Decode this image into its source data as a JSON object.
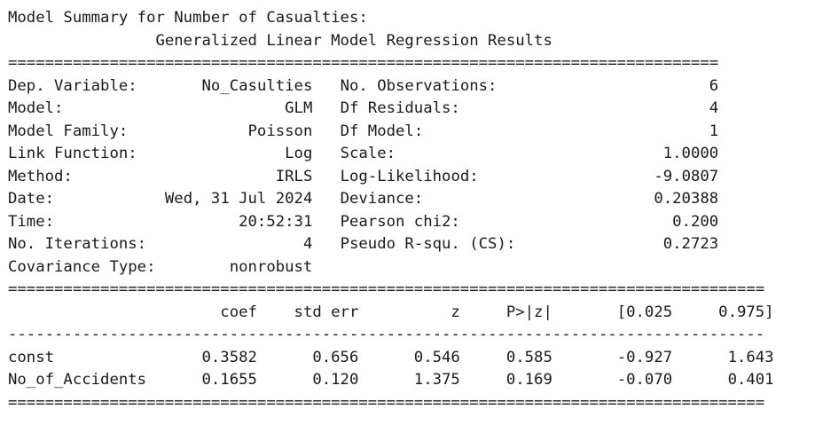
{
  "heading": "Model Summary for Number of Casualties:",
  "title": "Generalized Linear Model Regression Results",
  "rule_short": "=============================================================================",
  "rule_long": "==================================================================================",
  "rule_dash": "----------------------------------------------------------------------------------",
  "model_info": [
    {
      "left_label": "Dep. Variable:",
      "left_value": "No_Casulties",
      "right_label": "No. Observations:",
      "right_value": "6"
    },
    {
      "left_label": "Model:",
      "left_value": "GLM",
      "right_label": "Df Residuals:",
      "right_value": "4"
    },
    {
      "left_label": "Model Family:",
      "left_value": "Poisson",
      "right_label": "Df Model:",
      "right_value": "1"
    },
    {
      "left_label": "Link Function:",
      "left_value": "Log",
      "right_label": "Scale:",
      "right_value": "1.0000"
    },
    {
      "left_label": "Method:",
      "left_value": "IRLS",
      "right_label": "Log-Likelihood:",
      "right_value": "-9.0807"
    },
    {
      "left_label": "Date:",
      "left_value": "Wed, 31 Jul 2024",
      "right_label": "Deviance:",
      "right_value": "0.20388"
    },
    {
      "left_label": "Time:",
      "left_value": "20:52:31",
      "right_label": "Pearson chi2:",
      "right_value": "0.200"
    },
    {
      "left_label": "No. Iterations:",
      "left_value": "4",
      "right_label": "Pseudo R-squ. (CS):",
      "right_value": "0.2723"
    },
    {
      "left_label": "Covariance Type:",
      "left_value": "nonrobust",
      "right_label": "",
      "right_value": ""
    }
  ],
  "coef_table": {
    "columns": [
      "",
      "coef",
      "std err",
      "z",
      "P>|z|",
      "[0.025",
      "0.975]"
    ],
    "rows": [
      [
        "const",
        "0.3582",
        "0.656",
        "0.546",
        "0.585",
        "-0.927",
        "1.643"
      ],
      [
        "No_of_Accidents",
        "0.1655",
        "0.120",
        "1.375",
        "0.169",
        "-0.070",
        "0.401"
      ]
    ]
  }
}
